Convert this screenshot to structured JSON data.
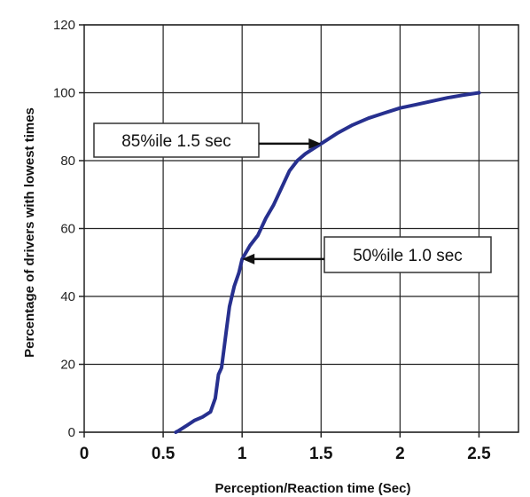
{
  "chart_data": {
    "type": "line",
    "title": "",
    "xlabel": "Perception/Reaction time (Sec)",
    "ylabel": "Percentage of drivers with lowest times",
    "xlim": [
      0,
      2.75
    ],
    "ylim": [
      0,
      120
    ],
    "xticks": [
      0,
      0.5,
      1,
      1.5,
      2,
      2.5
    ],
    "xtick_labels": [
      "0",
      "0.5",
      "1",
      "1.5",
      "2",
      "2.5"
    ],
    "yticks": [
      0,
      20,
      40,
      60,
      80,
      100,
      120
    ],
    "ytick_labels": [
      "0",
      "20",
      "40",
      "60",
      "80",
      "100",
      "120"
    ],
    "grid": true,
    "legend": "none",
    "line_color": "#27308f",
    "grid_color": "#222222",
    "series": [
      {
        "x": [
          0.58,
          0.6,
          0.65,
          0.7,
          0.75,
          0.8,
          0.83,
          0.85,
          0.87,
          0.9,
          0.92,
          0.95,
          0.98,
          1.0,
          1.05,
          1.1,
          1.15,
          1.2,
          1.25,
          1.3,
          1.35,
          1.4,
          1.45,
          1.5,
          1.6,
          1.7,
          1.8,
          1.9,
          2.0,
          2.1,
          2.2,
          2.3,
          2.4,
          2.5
        ],
        "y": [
          0,
          0.5,
          2,
          3.5,
          4.5,
          6,
          10,
          17,
          19,
          30,
          37,
          43,
          47,
          51,
          55,
          58,
          63,
          67,
          72,
          77,
          80,
          82,
          83.5,
          85,
          88,
          90.5,
          92.5,
          94,
          95.5,
          96.5,
          97.5,
          98.5,
          99.3,
          100
        ]
      }
    ],
    "annotations": [
      {
        "text": "85%ile 1.5 sec",
        "x": 1.5,
        "y": 85
      },
      {
        "text": "50%ile 1.0 sec",
        "x": 1.0,
        "y": 51
      }
    ]
  }
}
